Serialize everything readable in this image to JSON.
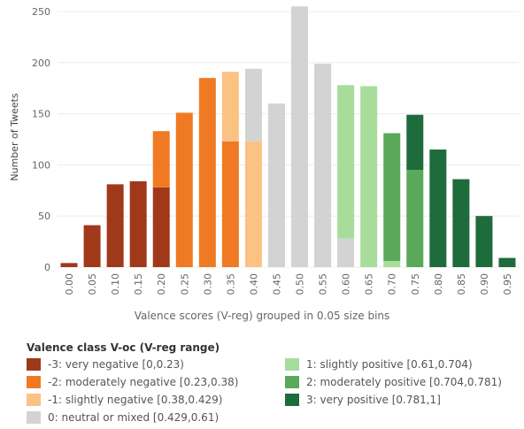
{
  "chart_data": {
    "type": "bar",
    "stacked": true,
    "ylabel": "Number of Tweets",
    "xlabel": "Valence scores (V-reg) grouped in 0.05 size bins",
    "ylim": [
      0,
      250
    ],
    "yticks": [
      0,
      50,
      100,
      150,
      200,
      250
    ],
    "grid": true,
    "categories": [
      "0.00",
      "0.05",
      "0.10",
      "0.15",
      "0.20",
      "0.25",
      "0.30",
      "0.35",
      "0.40",
      "0.45",
      "0.50",
      "0.55",
      "0.60",
      "0.65",
      "0.70",
      "0.75",
      "0.80",
      "0.85",
      "0.90",
      "0.95"
    ],
    "legend_title": "Valence class V-oc (V-reg range)",
    "legend_position": "bottom",
    "series": [
      {
        "name": "-3: very negative [0,0.23)",
        "color": "#a0391a",
        "values": [
          4,
          41,
          81,
          84,
          78,
          0,
          0,
          0,
          0,
          0,
          0,
          0,
          0,
          0,
          0,
          0,
          0,
          0,
          0,
          0
        ]
      },
      {
        "name": "-2: moderately negative [0.23,0.38)",
        "color": "#f07a24",
        "values": [
          0,
          0,
          0,
          0,
          55,
          151,
          185,
          123,
          0,
          0,
          0,
          0,
          0,
          0,
          0,
          0,
          0,
          0,
          0,
          0
        ]
      },
      {
        "name": "-1: slightly negative [0.38,0.429)",
        "color": "#fcc283",
        "values": [
          0,
          0,
          0,
          0,
          0,
          0,
          0,
          68,
          123,
          0,
          0,
          0,
          0,
          0,
          0,
          0,
          0,
          0,
          0,
          0
        ]
      },
      {
        "name": "0: neutral or mixed [0.429,0.61)",
        "color": "#d3d3d3",
        "values": [
          0,
          0,
          0,
          0,
          0,
          0,
          0,
          0,
          71,
          160,
          255,
          199,
          28,
          0,
          0,
          0,
          0,
          0,
          0,
          0
        ]
      },
      {
        "name": "1: slightly positive [0.61,0.704)",
        "color": "#a8dc9b",
        "values": [
          0,
          0,
          0,
          0,
          0,
          0,
          0,
          0,
          0,
          0,
          0,
          0,
          150,
          177,
          6,
          0,
          0,
          0,
          0,
          0
        ]
      },
      {
        "name": "2: moderately positive [0.704,0.781)",
        "color": "#5aa85a",
        "values": [
          0,
          0,
          0,
          0,
          0,
          0,
          0,
          0,
          0,
          0,
          0,
          0,
          0,
          0,
          125,
          95,
          0,
          0,
          0,
          0
        ]
      },
      {
        "name": "3: very positive [0.781,1]",
        "color": "#1e6b3c",
        "values": [
          0,
          0,
          0,
          0,
          0,
          0,
          0,
          0,
          0,
          0,
          0,
          0,
          0,
          0,
          0,
          54,
          115,
          86,
          50,
          9
        ]
      }
    ]
  }
}
